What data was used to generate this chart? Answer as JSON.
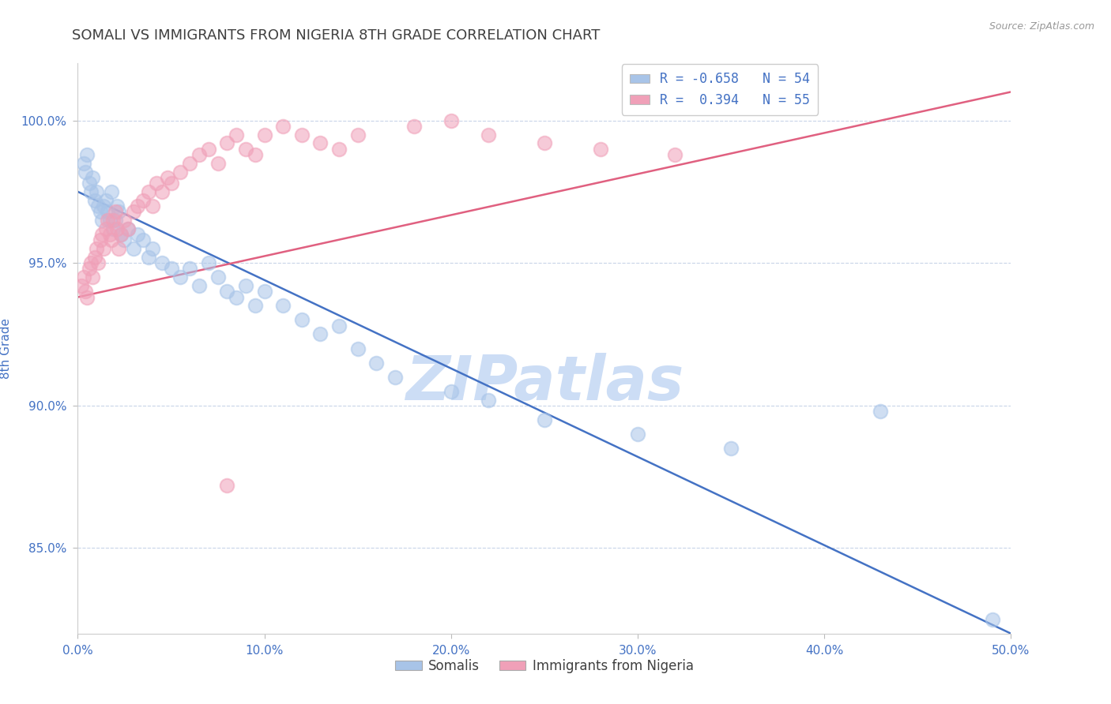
{
  "title": "SOMALI VS IMMIGRANTS FROM NIGERIA 8TH GRADE CORRELATION CHART",
  "source_text": "Source: ZipAtlas.com",
  "ylabel": "8th Grade",
  "xlim": [
    0.0,
    50.0
  ],
  "ylim": [
    82.0,
    102.0
  ],
  "x_ticks": [
    0.0,
    10.0,
    20.0,
    30.0,
    40.0,
    50.0
  ],
  "x_tick_labels": [
    "0.0%",
    "10.0%",
    "20.0%",
    "30.0%",
    "40.0%",
    "50.0%"
  ],
  "y_ticks": [
    85.0,
    90.0,
    95.0,
    100.0
  ],
  "y_tick_labels": [
    "85.0%",
    "90.0%",
    "95.0%",
    "100.0%"
  ],
  "legend_r1": "R = -0.658",
  "legend_n1": "N = 54",
  "legend_r2": "R =  0.394",
  "legend_n2": "N = 55",
  "somali_color": "#a8c4e8",
  "nigeria_color": "#f0a0b8",
  "blue_line_color": "#4472c4",
  "pink_line_color": "#e06080",
  "watermark": "ZIPatlas",
  "watermark_color": "#ccddf5",
  "title_color": "#404040",
  "axis_label_color": "#4472c4",
  "tick_color": "#4472c4",
  "grid_color": "#c8d4e8",
  "background_color": "#ffffff",
  "somali_x": [
    0.3,
    0.4,
    0.5,
    0.6,
    0.7,
    0.8,
    0.9,
    1.0,
    1.1,
    1.2,
    1.3,
    1.4,
    1.5,
    1.6,
    1.7,
    1.8,
    1.9,
    2.0,
    2.1,
    2.2,
    2.3,
    2.5,
    2.7,
    3.0,
    3.2,
    3.5,
    3.8,
    4.0,
    4.5,
    5.0,
    5.5,
    6.0,
    6.5,
    7.0,
    7.5,
    8.0,
    8.5,
    9.0,
    9.5,
    10.0,
    11.0,
    12.0,
    13.0,
    14.0,
    15.0,
    16.0,
    17.0,
    20.0,
    22.0,
    25.0,
    30.0,
    35.0,
    43.0,
    49.0
  ],
  "somali_y": [
    98.5,
    98.2,
    98.8,
    97.8,
    97.5,
    98.0,
    97.2,
    97.5,
    97.0,
    96.8,
    96.5,
    97.0,
    97.2,
    96.8,
    96.5,
    97.5,
    96.2,
    96.5,
    97.0,
    96.8,
    96.0,
    95.8,
    96.2,
    95.5,
    96.0,
    95.8,
    95.2,
    95.5,
    95.0,
    94.8,
    94.5,
    94.8,
    94.2,
    95.0,
    94.5,
    94.0,
    93.8,
    94.2,
    93.5,
    94.0,
    93.5,
    93.0,
    92.5,
    92.8,
    92.0,
    91.5,
    91.0,
    90.5,
    90.2,
    89.5,
    89.0,
    88.5,
    89.8,
    82.5
  ],
  "nigeria_x": [
    0.2,
    0.3,
    0.4,
    0.5,
    0.6,
    0.7,
    0.8,
    0.9,
    1.0,
    1.1,
    1.2,
    1.3,
    1.4,
    1.5,
    1.6,
    1.7,
    1.8,
    1.9,
    2.0,
    2.1,
    2.2,
    2.3,
    2.5,
    2.7,
    3.0,
    3.2,
    3.5,
    3.8,
    4.0,
    4.2,
    4.5,
    4.8,
    5.0,
    5.5,
    6.0,
    6.5,
    7.0,
    7.5,
    8.0,
    8.5,
    9.0,
    9.5,
    10.0,
    11.0,
    12.0,
    13.0,
    14.0,
    15.0,
    18.0,
    20.0,
    22.0,
    25.0,
    28.0,
    32.0,
    8.0
  ],
  "nigeria_y": [
    94.2,
    94.5,
    94.0,
    93.8,
    94.8,
    95.0,
    94.5,
    95.2,
    95.5,
    95.0,
    95.8,
    96.0,
    95.5,
    96.2,
    96.5,
    96.0,
    95.8,
    96.5,
    96.8,
    96.2,
    95.5,
    96.0,
    96.5,
    96.2,
    96.8,
    97.0,
    97.2,
    97.5,
    97.0,
    97.8,
    97.5,
    98.0,
    97.8,
    98.2,
    98.5,
    98.8,
    99.0,
    98.5,
    99.2,
    99.5,
    99.0,
    98.8,
    99.5,
    99.8,
    99.5,
    99.2,
    99.0,
    99.5,
    99.8,
    100.0,
    99.5,
    99.2,
    99.0,
    98.8,
    87.2
  ],
  "blue_line_x": [
    0.0,
    50.0
  ],
  "blue_line_y": [
    97.5,
    82.0
  ],
  "pink_line_x": [
    0.0,
    50.0
  ],
  "pink_line_y": [
    93.8,
    101.0
  ]
}
